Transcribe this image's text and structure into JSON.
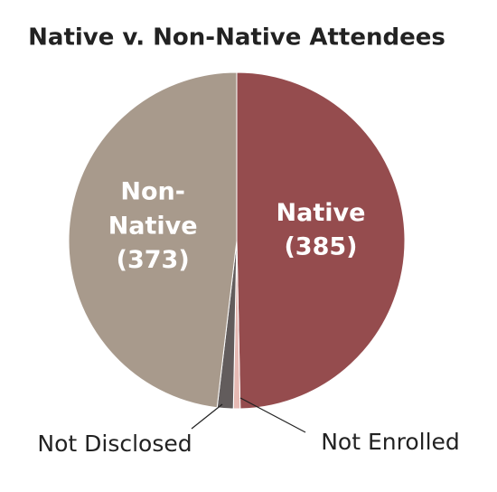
{
  "chart_data": {
    "type": "pie",
    "title": "Native v. Non-Native Attendees",
    "categories": [
      "Native",
      "Not Enrolled",
      "Not Disclosed",
      "Non-Native"
    ],
    "values": [
      385,
      5,
      12,
      373
    ],
    "value_labels": [
      "(385)",
      null,
      null,
      "(373)"
    ],
    "colors": [
      "#954c4e",
      "#e6b9b3",
      "#625c5c",
      "#a89a8c"
    ],
    "start_angle": 0,
    "direction": "clockwise"
  }
}
